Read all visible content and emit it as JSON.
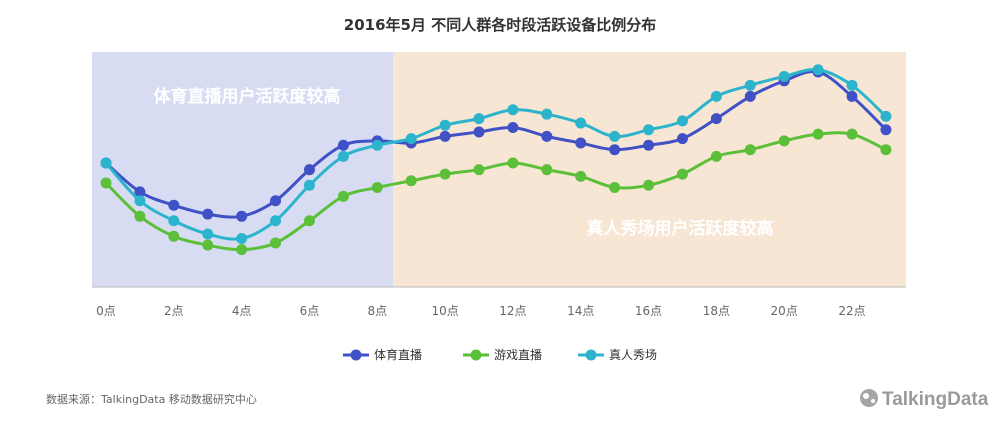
{
  "chart_data": {
    "type": "line",
    "title": "2016年5月 不同人群各时段活跃设备比例分布",
    "categories": [
      "0点",
      "1点",
      "2点",
      "3点",
      "4点",
      "5点",
      "6点",
      "7点",
      "8点",
      "9点",
      "10点",
      "11点",
      "12点",
      "13点",
      "14点",
      "15点",
      "16点",
      "17点",
      "18点",
      "19点",
      "20点",
      "21点",
      "22点",
      "23点"
    ],
    "x_tick_labels": [
      "0点",
      "2点",
      "4点",
      "6点",
      "8点",
      "10点",
      "12点",
      "14点",
      "16点",
      "18点",
      "20点",
      "22点"
    ],
    "ylim": [
      0,
      100
    ],
    "grid": false,
    "legend_position": "bottom",
    "series": [
      {
        "name": "体育直播",
        "color": "#3f51c4",
        "values": [
          59,
          46,
          40,
          36,
          35,
          42,
          56,
          67,
          69,
          68,
          71,
          73,
          75,
          71,
          68,
          65,
          67,
          70,
          79,
          89,
          96,
          100,
          89,
          74
        ]
      },
      {
        "name": "游戏直播",
        "color": "#5cbf3a",
        "values": [
          50,
          35,
          26,
          22,
          20,
          23,
          33,
          44,
          48,
          51,
          54,
          56,
          59,
          56,
          53,
          48,
          49,
          54,
          62,
          65,
          69,
          72,
          72,
          65
        ]
      },
      {
        "name": "真人秀场",
        "color": "#2bb4cc",
        "values": [
          59,
          42,
          33,
          27,
          25,
          33,
          49,
          62,
          67,
          70,
          76,
          79,
          83,
          81,
          77,
          71,
          74,
          78,
          89,
          94,
          98,
          101,
          94,
          80
        ]
      }
    ],
    "regions": [
      {
        "label": "体育直播用户活跃度较高",
        "from": "0点",
        "to": "8点",
        "color": "#d7dcf3"
      },
      {
        "label": "真人秀场用户活跃度较高",
        "from": "8点",
        "to": "23点",
        "color": "#f8e6d5"
      }
    ]
  },
  "source_text": "数据来源：TalkingData 移动数据研究中心",
  "brand_text": "TalkingData",
  "brand_icon": "talkingdata-logo-icon"
}
